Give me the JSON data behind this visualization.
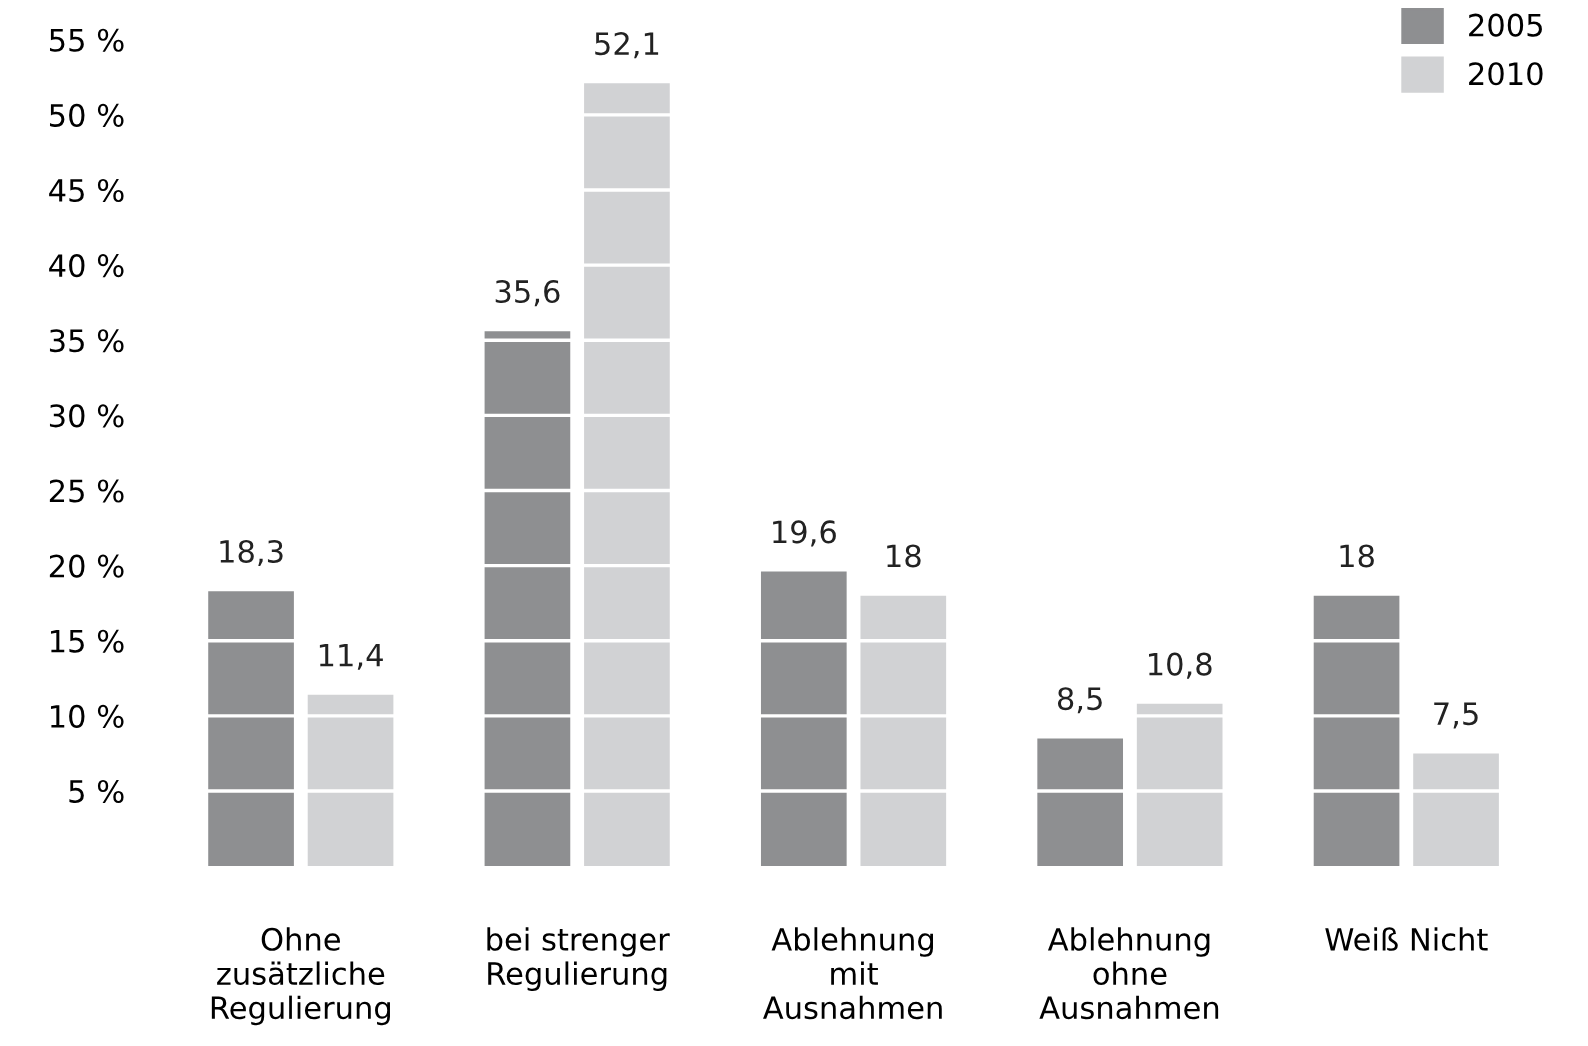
{
  "chart_data": {
    "type": "bar",
    "categories": [
      "Ohne\nzusätzliche\nRegulierung",
      "bei strenger\nRegulierung",
      "Ablehnung\nmit\nAusnahmen",
      "Ablehnung\nohne\nAusnahmen",
      "Weiß Nicht"
    ],
    "series": [
      {
        "name": "2005",
        "color": "#8e8f91",
        "values": [
          18.3,
          35.6,
          19.6,
          8.5,
          18
        ],
        "value_labels": [
          "18,3",
          "35,6",
          "19,6",
          "8,5",
          "18"
        ]
      },
      {
        "name": "2010",
        "color": "#d1d2d4",
        "values": [
          11.4,
          52.1,
          18,
          10.8,
          7.5
        ],
        "value_labels": [
          "11,4",
          "52,1",
          "18",
          "10,8",
          "7,5"
        ]
      }
    ],
    "ylim": [
      0,
      55
    ],
    "yticks": [
      {
        "value": 5,
        "label": "5 %"
      },
      {
        "value": 10,
        "label": "10 %"
      },
      {
        "value": 15,
        "label": "15 %"
      },
      {
        "value": 20,
        "label": "20 %"
      },
      {
        "value": 25,
        "label": "25 %"
      },
      {
        "value": 30,
        "label": "30 %"
      },
      {
        "value": 35,
        "label": "35 %"
      },
      {
        "value": 40,
        "label": "40 %"
      },
      {
        "value": 45,
        "label": "45 %"
      },
      {
        "value": 50,
        "label": "50 %"
      },
      {
        "value": 55,
        "label": "55 %"
      }
    ],
    "grid": "y",
    "legend": "top right"
  }
}
